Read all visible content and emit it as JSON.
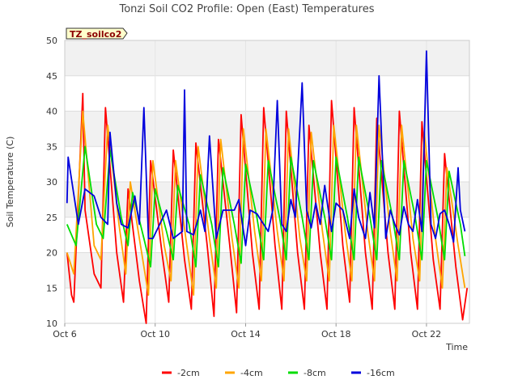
{
  "chart_data": {
    "type": "line",
    "title": "Tonzi Soil CO2 Profile: Open (East) Temperatures",
    "xlabel": "Time",
    "ylabel": "Soil Temperature (C)",
    "tag": "TZ_soilco2",
    "xlim": [
      6,
      23.9
    ],
    "ylim": [
      10,
      50
    ],
    "yticks": [
      10,
      15,
      20,
      25,
      30,
      35,
      40,
      45,
      50
    ],
    "xticks": [
      {
        "day": 6,
        "label": "Oct 6"
      },
      {
        "day": 10,
        "label": "Oct 10"
      },
      {
        "day": 14,
        "label": "Oct 14"
      },
      {
        "day": 18,
        "label": "Oct 18"
      },
      {
        "day": 22,
        "label": "Oct 22"
      }
    ],
    "grid": true,
    "legend_position": "bottom",
    "series": [
      {
        "name": "-2cm",
        "color": "#ff0000",
        "x": [
          6.1,
          6.3,
          6.4,
          6.8,
          6.9,
          7.3,
          7.6,
          7.8,
          8.3,
          8.6,
          8.8,
          9.3,
          9.6,
          9.8,
          10.3,
          10.6,
          10.8,
          11.3,
          11.6,
          11.8,
          12.3,
          12.6,
          12.8,
          13.3,
          13.6,
          13.8,
          14.3,
          14.6,
          14.8,
          15.3,
          15.6,
          15.8,
          16.3,
          16.6,
          16.8,
          17.3,
          17.6,
          17.8,
          18.3,
          18.6,
          18.8,
          19.3,
          19.6,
          19.8,
          20.3,
          20.6,
          20.8,
          21.3,
          21.6,
          21.8,
          22.3,
          22.6,
          22.8,
          23.3,
          23.6,
          23.8
        ],
        "y": [
          20,
          14,
          13,
          42.5,
          26,
          17,
          15,
          40.5,
          20,
          13,
          29,
          16,
          10,
          33,
          20,
          13,
          34.5,
          19,
          12,
          35.5,
          21,
          11,
          36,
          21,
          11.5,
          39.5,
          20,
          12,
          40.5,
          21,
          12,
          40,
          20,
          12,
          38,
          20,
          12,
          41.5,
          21,
          13,
          40.5,
          20,
          12,
          39,
          20,
          12,
          40,
          20,
          12,
          38.5,
          19,
          12,
          34,
          18,
          10.5,
          15
        ]
      },
      {
        "name": "-4cm",
        "color": "#ffa500",
        "x": [
          6.1,
          6.4,
          6.8,
          7.3,
          7.6,
          7.9,
          8.4,
          8.7,
          8.9,
          9.4,
          9.7,
          9.9,
          10.4,
          10.7,
          10.9,
          11.4,
          11.7,
          11.9,
          12.4,
          12.7,
          12.9,
          13.4,
          13.7,
          13.9,
          14.4,
          14.7,
          14.9,
          15.4,
          15.7,
          15.9,
          16.4,
          16.7,
          16.9,
          17.4,
          17.7,
          17.9,
          18.4,
          18.7,
          18.9,
          19.4,
          19.7,
          19.9,
          20.4,
          20.7,
          20.9,
          21.4,
          21.7,
          21.9,
          22.4,
          22.7,
          22.9,
          23.4,
          23.7
        ],
        "y": [
          20,
          17,
          40,
          21,
          19,
          38,
          24,
          17,
          30,
          20,
          14,
          33,
          21,
          16,
          33,
          21,
          14,
          35,
          22,
          15,
          36,
          22,
          15,
          37.5,
          23,
          16,
          37.5,
          23,
          16,
          37.5,
          22,
          16,
          37,
          23,
          16,
          38,
          23,
          16,
          38,
          23,
          16,
          38,
          23,
          16,
          38,
          22,
          16,
          37,
          22,
          15,
          32,
          21,
          15
        ]
      },
      {
        "name": "-8cm",
        "color": "#00dd00",
        "x": [
          6.1,
          6.5,
          6.9,
          7.4,
          7.7,
          8.0,
          8.5,
          8.8,
          9.0,
          9.5,
          9.8,
          10.0,
          10.5,
          10.8,
          11.0,
          11.5,
          11.8,
          12.0,
          12.5,
          12.8,
          13.0,
          13.5,
          13.8,
          14.0,
          14.5,
          14.8,
          15.0,
          15.5,
          15.8,
          16.0,
          16.5,
          16.8,
          17.0,
          17.5,
          17.8,
          18.0,
          18.5,
          18.8,
          19.0,
          19.5,
          19.8,
          20.0,
          20.5,
          20.8,
          21.0,
          21.5,
          21.8,
          22.0,
          22.5,
          22.8,
          23.0,
          23.5,
          23.7
        ],
        "y": [
          24,
          21,
          35,
          24,
          22,
          34.5,
          25,
          21,
          28.5,
          22,
          18,
          29,
          23,
          19,
          29.5,
          24,
          18,
          31,
          24,
          18,
          32,
          24,
          18.5,
          32.5,
          25,
          19,
          33,
          25,
          19,
          33.5,
          25,
          19,
          33,
          25,
          19,
          33.5,
          25,
          19,
          33.5,
          25,
          19,
          33,
          25,
          19,
          33,
          25,
          19,
          33,
          25,
          19,
          31.5,
          24,
          19.5
        ]
      },
      {
        "name": "-16cm",
        "color": "#0000dd",
        "x": [
          6.1,
          6.15,
          6.6,
          6.9,
          7.3,
          7.6,
          7.9,
          8.0,
          8.3,
          8.5,
          8.8,
          9.1,
          9.3,
          9.5,
          9.7,
          9.9,
          10.2,
          10.5,
          10.8,
          11.2,
          11.3,
          11.4,
          11.7,
          12.0,
          12.2,
          12.4,
          12.7,
          13.0,
          13.3,
          13.5,
          13.7,
          14.0,
          14.2,
          14.5,
          14.8,
          15.0,
          15.2,
          15.4,
          15.6,
          15.8,
          16.0,
          16.2,
          16.5,
          16.7,
          16.9,
          17.1,
          17.3,
          17.5,
          17.8,
          18.0,
          18.3,
          18.6,
          18.8,
          19.0,
          19.3,
          19.5,
          19.7,
          19.9,
          20.2,
          20.4,
          20.6,
          20.8,
          21.0,
          21.2,
          21.4,
          21.6,
          21.8,
          22.0,
          22.2,
          22.4,
          22.6,
          22.8,
          23.0,
          23.2,
          23.4,
          23.5,
          23.7
        ],
        "y": [
          27,
          33.5,
          24,
          29,
          28,
          25,
          24,
          37,
          27,
          24,
          23.5,
          28,
          24,
          40.5,
          22,
          22,
          24,
          26,
          22,
          23,
          43,
          23,
          22.5,
          26,
          23,
          36.5,
          22,
          26,
          26,
          26,
          27.5,
          21,
          26,
          25.5,
          24,
          23,
          26,
          41.5,
          24,
          23,
          27.5,
          25,
          44,
          26,
          23.5,
          27,
          24,
          29.5,
          23,
          27,
          26,
          22,
          29,
          25,
          22,
          28.5,
          23.5,
          45,
          22,
          26,
          24,
          22.5,
          26.5,
          24,
          23,
          27.5,
          23,
          48.5,
          24,
          22,
          25.5,
          26,
          24,
          21.5,
          32,
          26,
          23
        ]
      }
    ]
  }
}
